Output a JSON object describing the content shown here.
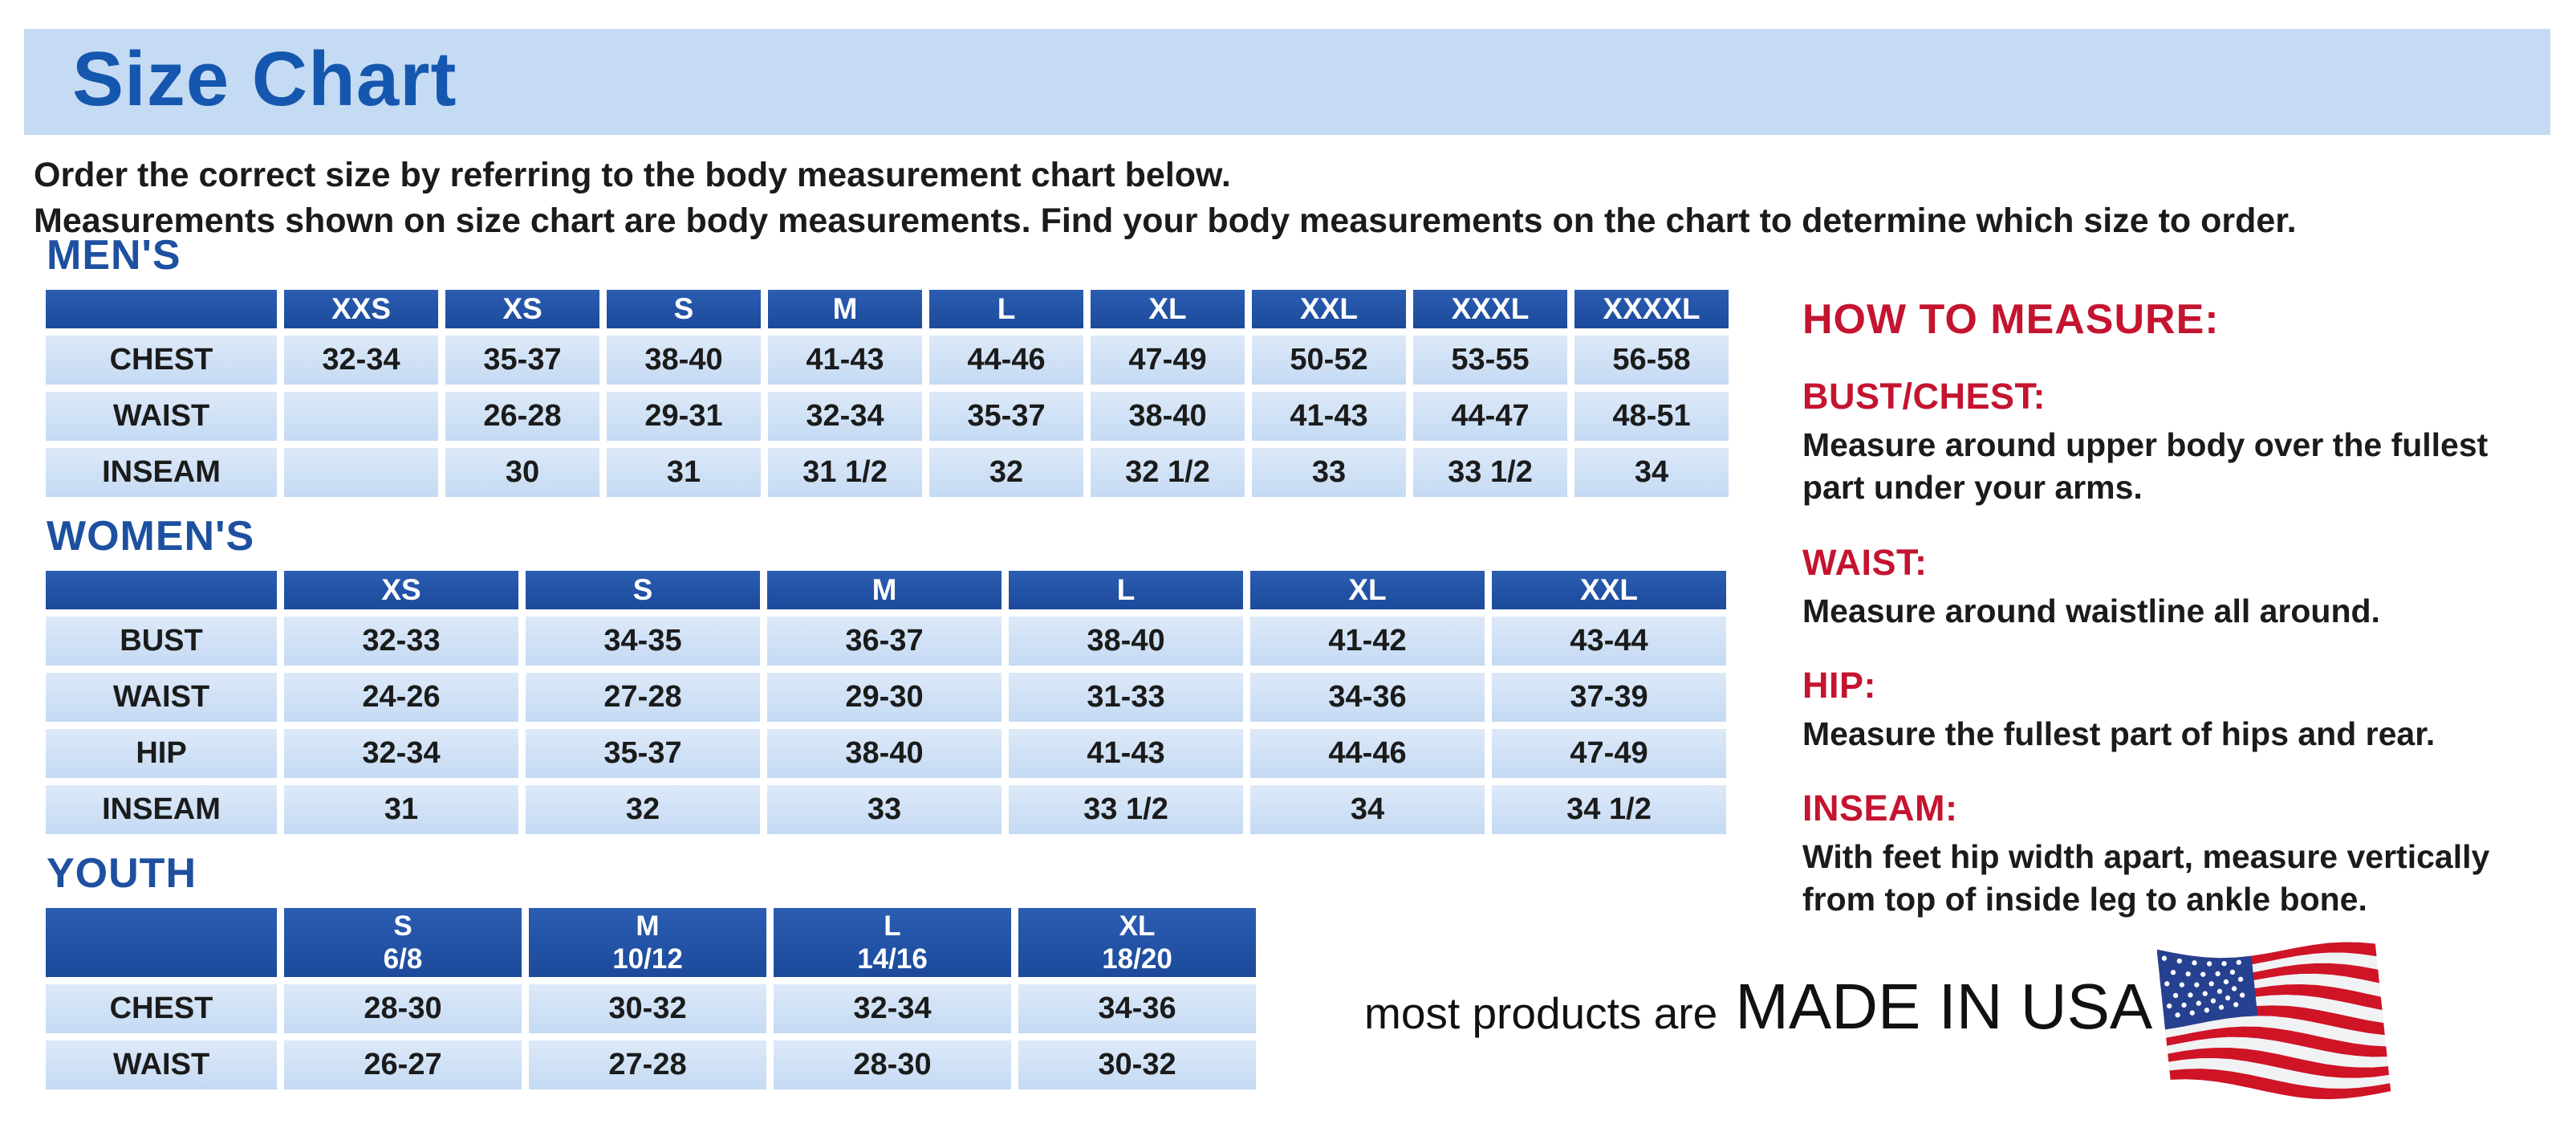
{
  "title": "Size Chart",
  "intro": {
    "line1": "Order the correct size by referring to the body measurement chart below.",
    "line2": "Measurements shown on size chart are body measurements.  Find your body measurements on the chart to determine which size to order."
  },
  "colors": {
    "title_blue": "#1557ae",
    "heading_blue": "#1d50a0",
    "table_header_blue": "#2153a4",
    "banner_background": "#c5dbf3",
    "cell_light_blue": "#cfe0f4",
    "heading_red": "#c41430"
  },
  "tables": [
    {
      "id": "mens",
      "section_title": "MEN'S",
      "columns": [
        "",
        "XXS",
        "XS",
        "S",
        "M",
        "L",
        "XL",
        "XXL",
        "XXXL",
        "XXXXL"
      ],
      "rows": [
        {
          "label": "CHEST",
          "values": [
            "32-34",
            "35-37",
            "38-40",
            "41-43",
            "44-46",
            "47-49",
            "50-52",
            "53-55",
            "56-58"
          ]
        },
        {
          "label": "WAIST",
          "values": [
            "",
            "26-28",
            "29-31",
            "32-34",
            "35-37",
            "38-40",
            "41-43",
            "44-47",
            "48-51"
          ]
        },
        {
          "label": "INSEAM",
          "values": [
            "",
            "30",
            "31",
            "31 1/2",
            "32",
            "32 1/2",
            "33",
            "33 1/2",
            "34"
          ]
        }
      ]
    },
    {
      "id": "womens",
      "section_title": "WOMEN'S",
      "columns": [
        "",
        "XS",
        "S",
        "M",
        "L",
        "XL",
        "XXL"
      ],
      "rows": [
        {
          "label": "BUST",
          "values": [
            "32-33",
            "34-35",
            "36-37",
            "38-40",
            "41-42",
            "43-44"
          ]
        },
        {
          "label": "WAIST",
          "values": [
            "24-26",
            "27-28",
            "29-30",
            "31-33",
            "34-36",
            "37-39"
          ]
        },
        {
          "label": "HIP",
          "values": [
            "32-34",
            "35-37",
            "38-40",
            "41-43",
            "44-46",
            "47-49"
          ]
        },
        {
          "label": "INSEAM",
          "values": [
            "31",
            "32",
            "33",
            "33 1/2",
            "34",
            "34 1/2"
          ]
        }
      ]
    },
    {
      "id": "youth",
      "section_title": "YOUTH",
      "columns": [
        "",
        "S\n6/8",
        "M\n10/12",
        "L\n14/16",
        "XL\n18/20"
      ],
      "rows": [
        {
          "label": "CHEST",
          "values": [
            "28-30",
            "30-32",
            "32-34",
            "34-36"
          ]
        },
        {
          "label": "WAIST",
          "values": [
            "26-27",
            "27-28",
            "28-30",
            "30-32"
          ]
        }
      ]
    }
  ],
  "how_to_measure": {
    "title": "HOW TO MEASURE:",
    "items": [
      {
        "heading": "BUST/CHEST:",
        "text": "Measure around upper body over the fullest part under your arms."
      },
      {
        "heading": "WAIST:",
        "text": "Measure around waistline all around."
      },
      {
        "heading": "HIP:",
        "text": "Measure the fullest part of hips and rear."
      },
      {
        "heading": "INSEAM:",
        "text": "With feet hip width apart, measure vertically from top of inside leg to ankle bone."
      }
    ]
  },
  "footer": {
    "prefix": "most products are",
    "emphasis": "MADE IN USA",
    "flag_icon": "usa-flag-icon"
  }
}
